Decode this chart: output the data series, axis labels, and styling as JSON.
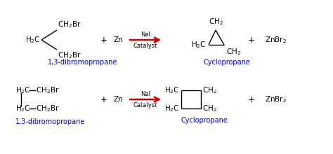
{
  "bg_color": "#ffffff",
  "black": "#000000",
  "blue": "#0000cc",
  "red": "#cc0000",
  "fontsize_main": 7.5,
  "fontsize_sub": 6.0,
  "fontsize_label": 7.0,
  "rxn1": {
    "reactant_label": "1,3-dibromopropane",
    "product_label": "Cyclopropane",
    "catalyst_top": "NaI",
    "catalyst_bot": "Catalyst",
    "reagent": "Zn",
    "byproduct": "ZnBr$_2$"
  },
  "rxn2": {
    "reactant_label": "1,3-dibromopropane",
    "product_label": "Cyclopropane",
    "catalyst_top": "NaI",
    "catalyst_bot": "Catalyst",
    "reagent": "Zn",
    "byproduct": "ZnBr$_2$"
  }
}
